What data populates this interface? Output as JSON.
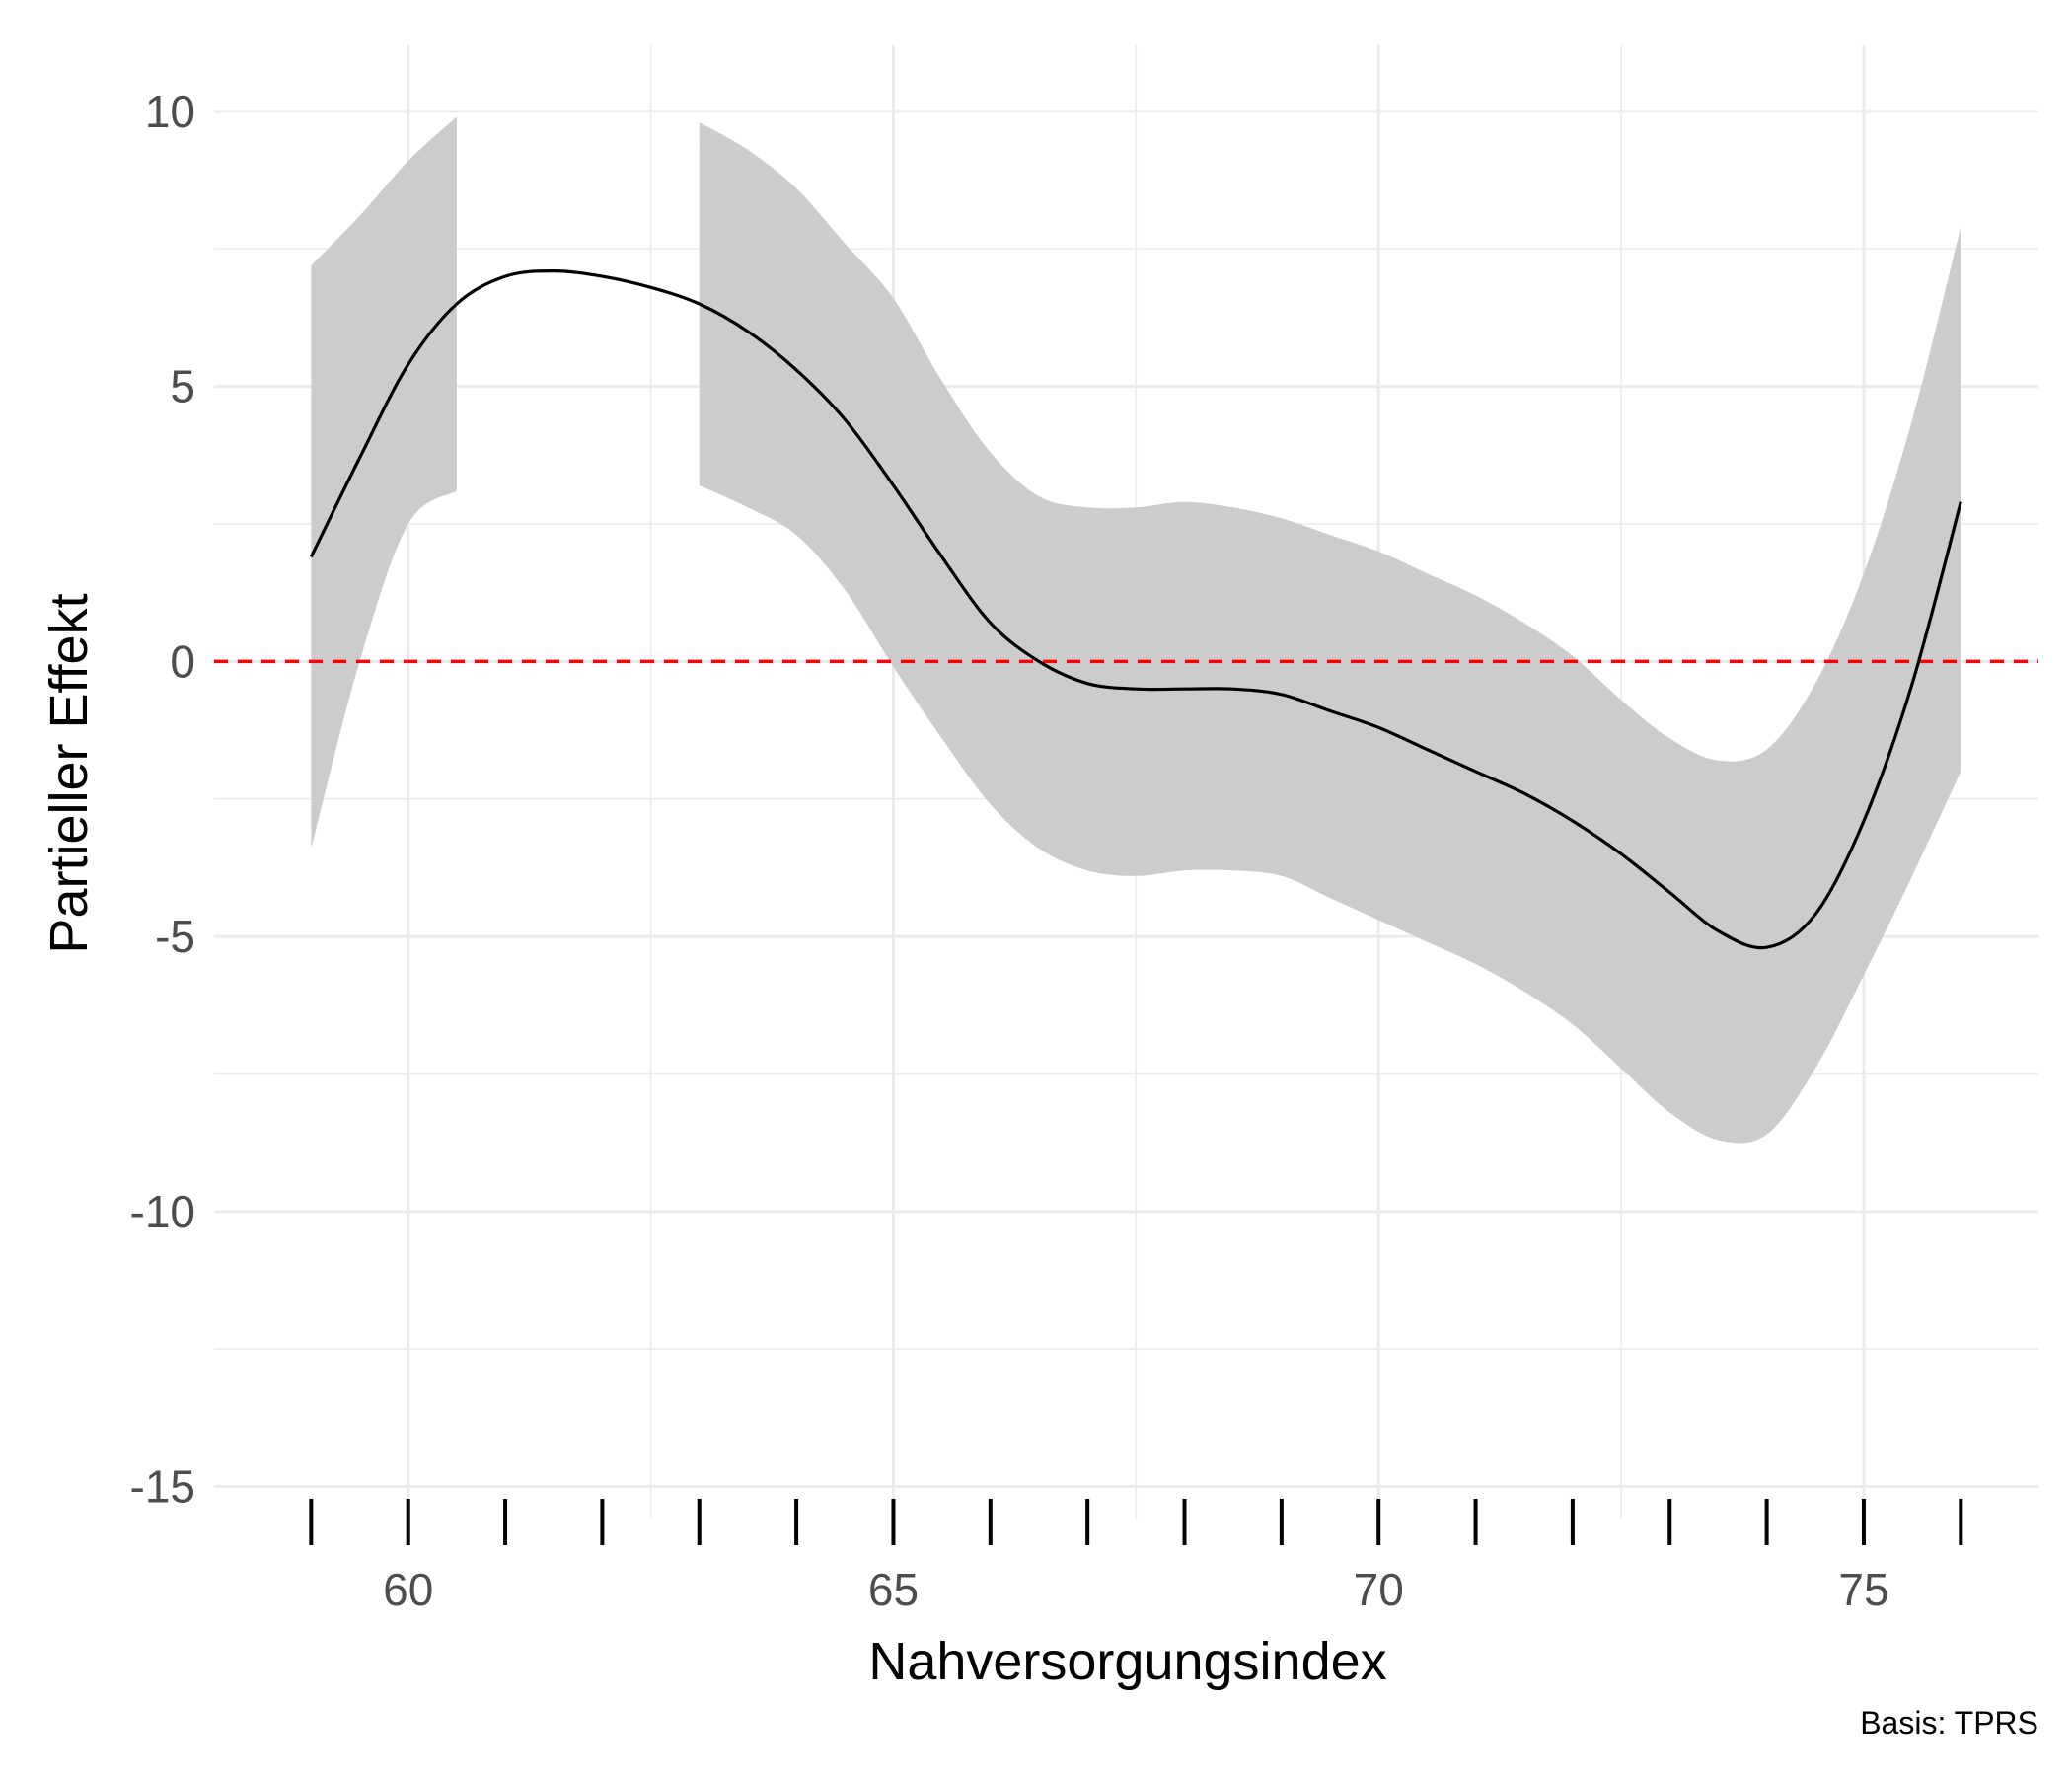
{
  "chart_data": {
    "type": "line",
    "xlabel": "Nahversorgungsindex",
    "ylabel": "Partieller Effekt",
    "caption": "Basis: TPRS",
    "xlim": [
      58.0,
      76.8
    ],
    "ylim": [
      -15.6,
      11.2
    ],
    "x_ticks": [
      60,
      65,
      70,
      75
    ],
    "x_tick_labels": [
      "60",
      "65",
      "70",
      "75"
    ],
    "x_minor_gridlines": [
      62.5,
      67.5,
      72.5
    ],
    "y_ticks": [
      10,
      5,
      0,
      -5,
      -10,
      -15
    ],
    "y_tick_labels": [
      "10",
      "5",
      "0",
      "-5",
      "-10",
      "-15"
    ],
    "y_minor_gridlines": [
      7.5,
      2.5,
      -2.5,
      -7.5,
      -12.5
    ],
    "grid": true,
    "reference_line": {
      "y": 0,
      "color": "#ff0000",
      "style": "dashed"
    },
    "colors": {
      "fit": "#000000",
      "band": "#cccccc",
      "grid": "#ebebeb",
      "reference": "#ff0000",
      "rug": "#000000"
    },
    "rug_x": [
      59,
      60,
      61,
      62,
      63,
      64,
      65,
      66,
      67,
      68,
      69,
      70,
      71,
      72,
      73,
      74,
      75,
      76
    ],
    "series": [
      {
        "x": [
          59.0,
          59.5,
          60.0,
          60.5,
          61.0,
          61.5,
          62.0,
          62.5,
          63.0,
          63.5,
          64.0,
          64.5,
          65.0,
          65.5,
          66.0,
          66.5,
          67.0,
          67.5,
          68.0,
          68.5,
          69.0,
          69.5,
          70.0,
          70.5,
          71.0,
          71.5,
          72.0,
          72.5,
          73.0,
          73.5,
          74.0,
          74.5,
          75.0,
          75.5,
          76.0
        ],
        "fit": [
          1.9,
          3.7,
          5.4,
          6.5,
          7.0,
          7.1,
          7.0,
          6.8,
          6.5,
          6.0,
          5.3,
          4.4,
          3.2,
          1.9,
          0.7,
          0.0,
          -0.4,
          -0.5,
          -0.5,
          -0.5,
          -0.6,
          -0.9,
          -1.2,
          -1.6,
          -2.0,
          -2.4,
          -2.9,
          -3.5,
          -4.2,
          -4.9,
          -5.2,
          -4.6,
          -2.9,
          -0.4,
          2.9
        ],
        "lower": [
          -3.4,
          0.0,
          2.5,
          3.1,
          null,
          null,
          null,
          null,
          3.2,
          2.8,
          2.3,
          1.3,
          -0.1,
          -1.4,
          -2.6,
          -3.4,
          -3.8,
          -3.9,
          -3.8,
          -3.8,
          -3.9,
          -4.3,
          -4.7,
          -5.1,
          -5.5,
          -6.0,
          -6.6,
          -7.4,
          -8.2,
          -8.7,
          -8.6,
          -7.4,
          -5.7,
          -3.9,
          -2.0
        ],
        "upper": [
          7.2,
          8.1,
          9.1,
          9.9,
          null,
          null,
          null,
          null,
          9.8,
          9.3,
          8.6,
          7.6,
          6.6,
          5.1,
          3.8,
          3.0,
          2.8,
          2.8,
          2.9,
          2.8,
          2.6,
          2.3,
          2.0,
          1.6,
          1.2,
          0.7,
          0.1,
          -0.7,
          -1.4,
          -1.8,
          -1.6,
          -0.4,
          1.6,
          4.4,
          7.9
        ]
      }
    ]
  }
}
